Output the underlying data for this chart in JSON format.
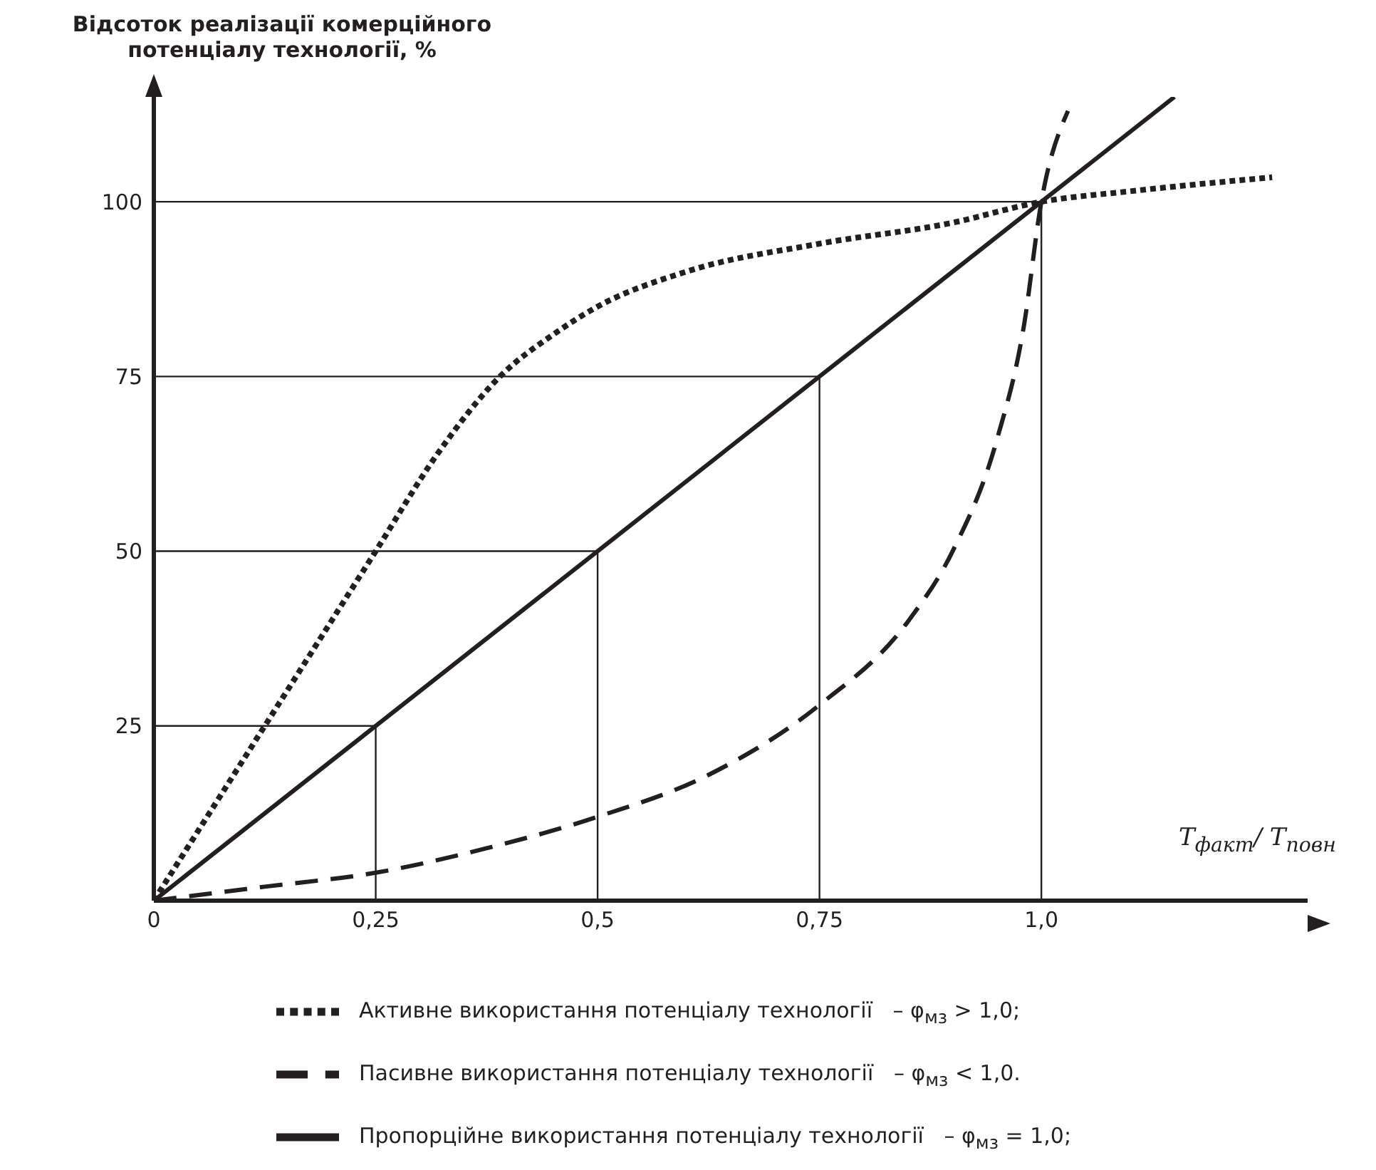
{
  "chart_data": {
    "type": "line",
    "ylabel": "Відсоток реалізації комерційного потенціалу технології, %",
    "xlabel": "T$_{факт}$/ T$_{повн}$",
    "xlim": [
      0,
      1.3
    ],
    "ylim": [
      0,
      115
    ],
    "xticks": [
      {
        "value": 0,
        "label": "0"
      },
      {
        "value": 0.25,
        "label": "0,25"
      },
      {
        "value": 0.5,
        "label": "0,5"
      },
      {
        "value": 0.75,
        "label": "0,75"
      },
      {
        "value": 1,
        "label": "1,0"
      }
    ],
    "yticks": [
      25,
      50,
      75,
      100
    ],
    "legend": "bottom",
    "marker": "none",
    "ref_lines": [
      {
        "axis": "x",
        "value": 0.25
      },
      {
        "axis": "x",
        "value": 0.5
      },
      {
        "axis": "x",
        "value": 0.75
      },
      {
        "axis": "x",
        "value": 1
      },
      {
        "axis": "y",
        "value": 25
      },
      {
        "axis": "y",
        "value": 50
      },
      {
        "axis": "y",
        "value": 75
      },
      {
        "axis": "y",
        "value": 100
      }
    ],
    "series": [
      {
        "name": "Пропорційне використання потенціалу технології   – φ$_{мз}$ = 1,0;",
        "color": "#231f20",
        "line_style": "solid",
        "x": [
          0,
          1.15
        ],
        "values": [
          0,
          115
        ]
      },
      {
        "name": "Активне використання потенціалу технології   – φ$_{мз}$ > 1,0;",
        "color": "#231f20",
        "line_style": "dotted",
        "x": [
          0,
          0.06,
          0.125,
          0.19,
          0.25,
          0.32,
          0.39,
          0.45,
          0.5,
          0.6,
          0.75,
          0.9,
          1,
          1.1,
          1.26
        ],
        "values": [
          0,
          12,
          25,
          38,
          50,
          64,
          75,
          81,
          85,
          90,
          94,
          97,
          100,
          101.5,
          103.5
        ]
      },
      {
        "name": "Пасивне використання потенціалу технології   – φ$_{мз}$ < 1,0.",
        "color": "#231f20",
        "line_style": "dashed",
        "x": [
          0,
          0.125,
          0.25,
          0.375,
          0.5,
          0.625,
          0.75,
          0.85,
          0.9,
          0.95,
          0.98,
          1,
          1.03
        ],
        "values": [
          0,
          2,
          4,
          7.5,
          12,
          18,
          28,
          40,
          50,
          66,
          82,
          100,
          113
        ]
      }
    ]
  }
}
